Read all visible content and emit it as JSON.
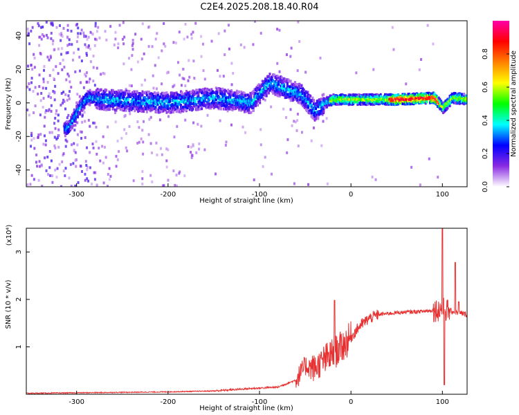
{
  "title": "C2E4.2025.208.18.40.R04",
  "chart_data": [
    {
      "type": "heatmap",
      "xlabel": "Height of straight line (km)",
      "ylabel": "Frequency (Hz)",
      "xlim": [
        -355,
        127
      ],
      "ylim": [
        -50,
        49
      ],
      "xticks": [
        -300,
        -200,
        -100,
        0,
        100
      ],
      "yticks": [
        -40,
        -20,
        0,
        20,
        40
      ],
      "colorbar": {
        "label": "Normalized spectral amplitude",
        "range": [
          0,
          1
        ],
        "ticks": [
          0.0,
          0.2,
          0.4,
          0.6,
          0.8
        ],
        "colors": [
          "#ffffff",
          "#8a2be2",
          "#0000ff",
          "#00ffff",
          "#00ff00",
          "#ffff00",
          "#ff8000",
          "#ff0000",
          "#ff00aa"
        ]
      },
      "ridge": [
        {
          "x": -310,
          "y": -15
        },
        {
          "x": -300,
          "y": -5
        },
        {
          "x": -290,
          "y": 3
        },
        {
          "x": -275,
          "y": 2
        },
        {
          "x": -200,
          "y": 0
        },
        {
          "x": -150,
          "y": 3
        },
        {
          "x": -110,
          "y": 0
        },
        {
          "x": -90,
          "y": 12
        },
        {
          "x": -70,
          "y": 8
        },
        {
          "x": -55,
          "y": 5
        },
        {
          "x": -40,
          "y": -5
        },
        {
          "x": -30,
          "y": 0
        },
        {
          "x": -20,
          "y": 2
        },
        {
          "x": 0,
          "y": 2
        },
        {
          "x": 50,
          "y": 2
        },
        {
          "x": 90,
          "y": 3
        },
        {
          "x": 100,
          "y": -3
        },
        {
          "x": 110,
          "y": 3
        },
        {
          "x": 127,
          "y": 2
        }
      ]
    },
    {
      "type": "line",
      "xlabel": "Height of straight line (km)",
      "ylabel": "SNR (10 * v/v)",
      "y_multiplier": "(x10⁴)",
      "xlim": [
        -355,
        127
      ],
      "ylim": [
        0,
        3.5
      ],
      "xticks": [
        -300,
        -200,
        -100,
        0,
        100
      ],
      "yticks": [
        1,
        2,
        3
      ],
      "color": "#e83030",
      "envelope": [
        {
          "x": -355,
          "y": 0.02
        },
        {
          "x": -250,
          "y": 0.04
        },
        {
          "x": -200,
          "y": 0.05
        },
        {
          "x": -150,
          "y": 0.07
        },
        {
          "x": -110,
          "y": 0.12
        },
        {
          "x": -80,
          "y": 0.15
        },
        {
          "x": -60,
          "y": 0.3
        },
        {
          "x": -50,
          "y": 0.6
        },
        {
          "x": -40,
          "y": 0.55
        },
        {
          "x": -30,
          "y": 0.7
        },
        {
          "x": -20,
          "y": 0.85
        },
        {
          "x": -10,
          "y": 1.0
        },
        {
          "x": 0,
          "y": 1.2
        },
        {
          "x": 10,
          "y": 1.45
        },
        {
          "x": 20,
          "y": 1.6
        },
        {
          "x": 30,
          "y": 1.68
        },
        {
          "x": 50,
          "y": 1.72
        },
        {
          "x": 80,
          "y": 1.75
        },
        {
          "x": 95,
          "y": 1.78
        },
        {
          "x": 100,
          "y": 1.8
        },
        {
          "x": 110,
          "y": 1.75
        },
        {
          "x": 127,
          "y": 1.68
        }
      ],
      "peaks": [
        {
          "x": -18,
          "y": 1.98
        },
        {
          "x": 100,
          "y": 3.55
        },
        {
          "x": 102,
          "y": 0.2
        },
        {
          "x": 114,
          "y": 2.78
        },
        {
          "x": 118,
          "y": 1.95
        }
      ]
    }
  ]
}
